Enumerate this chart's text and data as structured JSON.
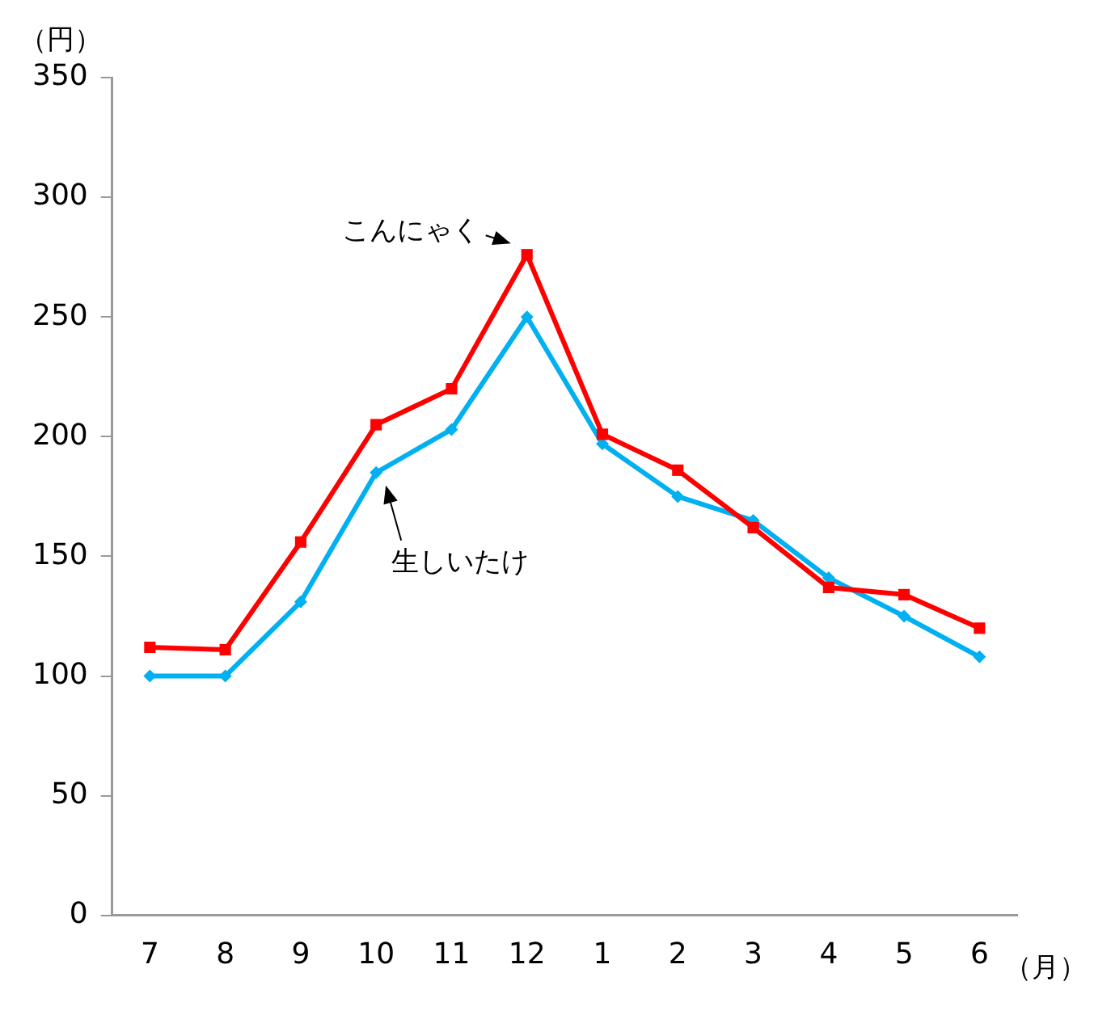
{
  "chart_data": {
    "type": "line",
    "ylabel": "（円）",
    "xlabel": "（月）",
    "categories": [
      "7",
      "8",
      "9",
      "10",
      "11",
      "12",
      "1",
      "2",
      "3",
      "4",
      "5",
      "6"
    ],
    "series": [
      {
        "name": "こんにゃく",
        "color": "#ff0000",
        "marker": "square",
        "values": [
          112,
          111,
          156,
          205,
          220,
          276,
          201,
          186,
          162,
          137,
          134,
          120
        ]
      },
      {
        "name": "生しいたけ",
        "color": "#00b0f0",
        "marker": "diamond",
        "values": [
          100,
          100,
          131,
          185,
          203,
          250,
          197,
          175,
          165,
          141,
          125,
          108
        ]
      }
    ],
    "ylim": [
      0,
      350
    ],
    "yticks": [
      0,
      50,
      100,
      150,
      200,
      250,
      300,
      350
    ],
    "grid": false,
    "legend": false,
    "line_style": "solid"
  }
}
